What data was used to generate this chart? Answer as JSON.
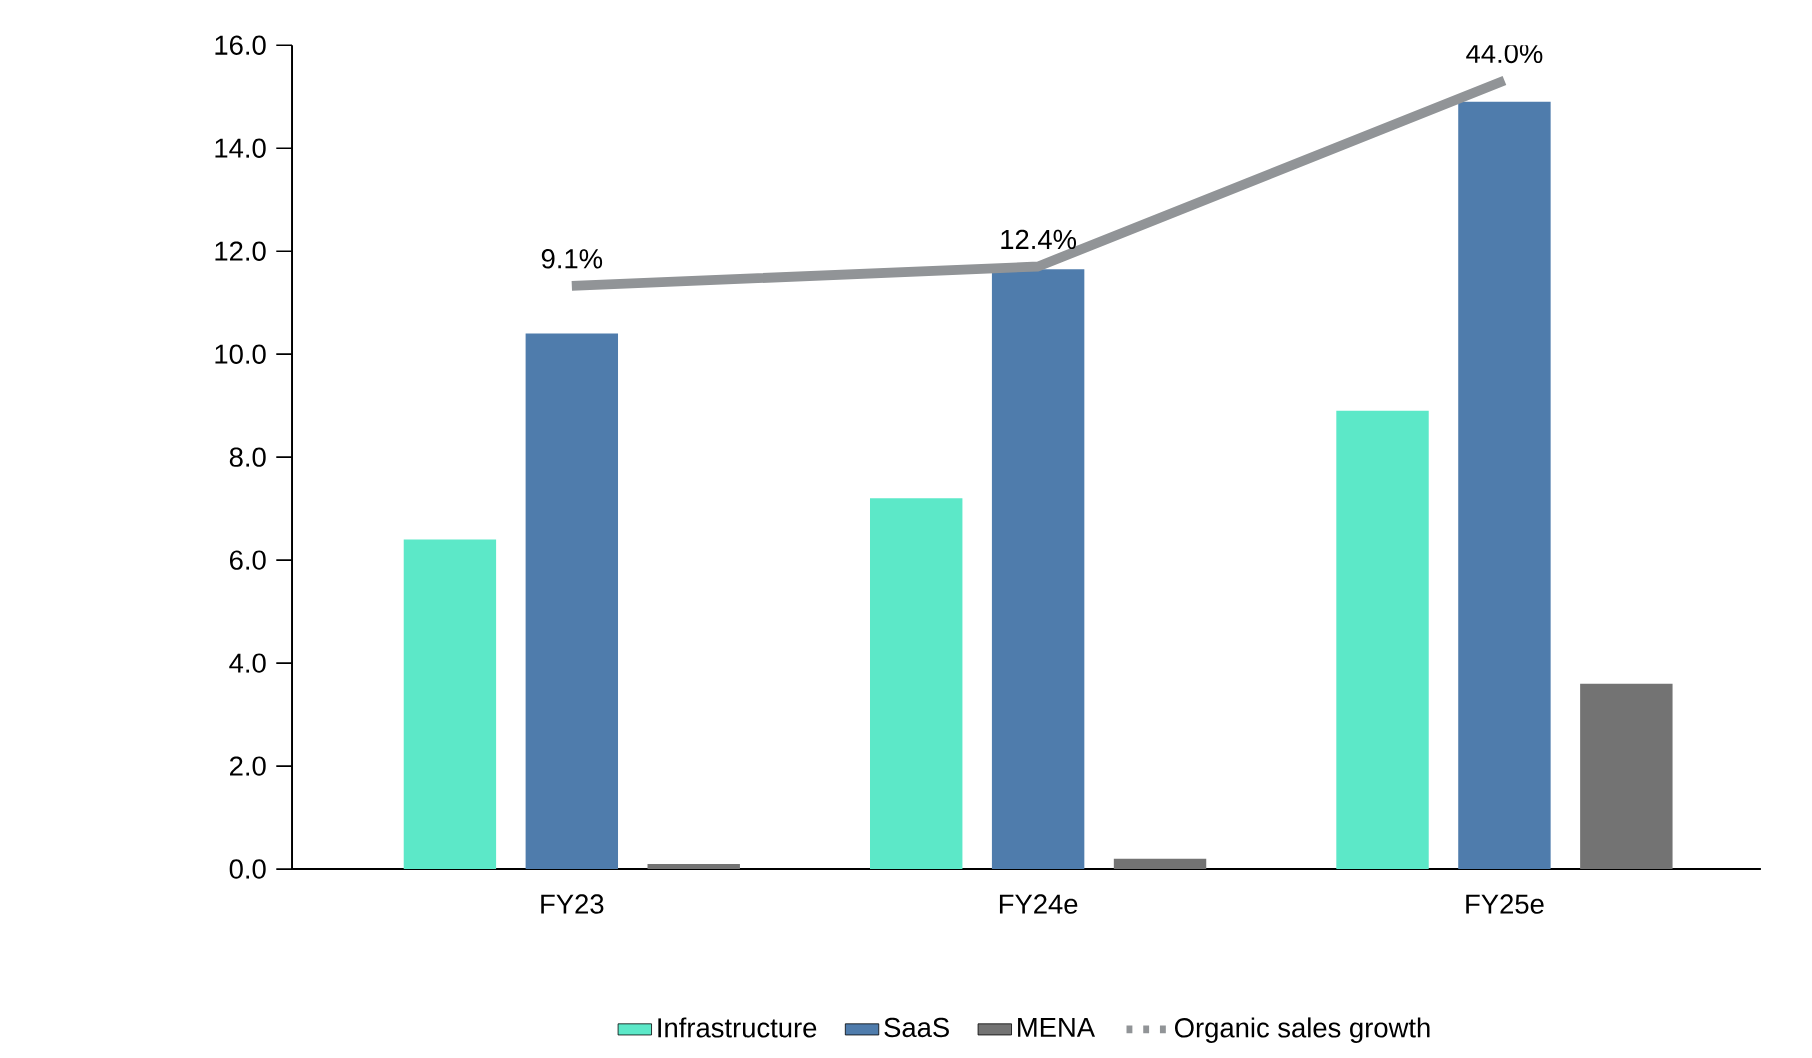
{
  "chart_data": {
    "type": "bar",
    "categories": [
      "FY23",
      "FY24e",
      "FY25e"
    ],
    "series": [
      {
        "name": "Infrastructure",
        "color": "#5ce8c8",
        "values": [
          6.4,
          7.2,
          8.9
        ]
      },
      {
        "name": "SaaS",
        "color": "#4f7cac",
        "values": [
          10.4,
          11.65,
          14.9
        ]
      },
      {
        "name": "MENA",
        "color": "#737373",
        "values": [
          0.1,
          0.2,
          3.6
        ]
      },
      {
        "name": "Organic sales growth",
        "type": "line",
        "axis": "y2",
        "color": "#919497",
        "values": [
          9.1,
          12.4,
          44.0
        ],
        "value_labels": [
          "9.1%",
          "12.4%",
          "44.0%"
        ]
      }
    ],
    "ylim": [
      0,
      16
    ],
    "yticks": [
      {
        "value": 0,
        "label": "0.0"
      },
      {
        "value": 2,
        "label": "2.0"
      },
      {
        "value": 4,
        "label": "4.0"
      },
      {
        "value": 6,
        "label": "6.0"
      },
      {
        "value": 8,
        "label": "8.0"
      },
      {
        "value": 10,
        "label": "10.0"
      },
      {
        "value": 12,
        "label": "12.0"
      },
      {
        "value": 14,
        "label": "14.0"
      },
      {
        "value": 16,
        "label": "16.0"
      }
    ],
    "y2lim": [
      -90,
      50
    ],
    "tick_labels": "xy",
    "legend": "bottom",
    "grid": false,
    "marker": "none",
    "line_style": "solid"
  }
}
